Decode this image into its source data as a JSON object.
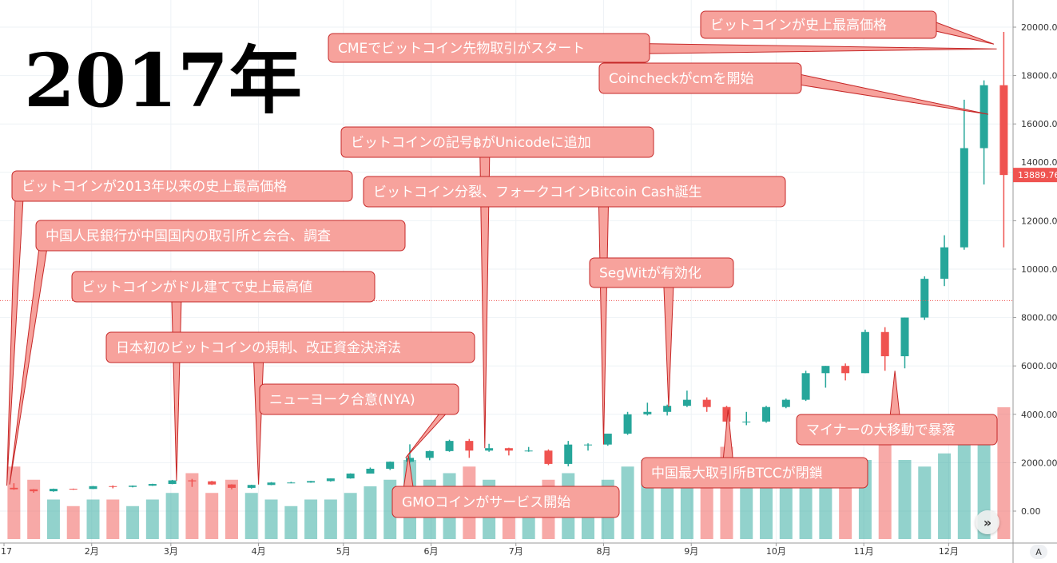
{
  "title": "2017年",
  "colors": {
    "up": "#26a69a",
    "down": "#ef5350",
    "annotation_fill": "#f7a29c",
    "annotation_border": "#c62828",
    "price_label": "#ef5350"
  },
  "controls": {
    "scroll_label": "»",
    "auto_label": "A"
  },
  "chart_data": {
    "type": "candlestick",
    "title": "",
    "x_tick_labels": [
      "17",
      "2月",
      "3月",
      "4月",
      "5月",
      "6月",
      "7月",
      "8月",
      "9月",
      "10月",
      "11月",
      "12月"
    ],
    "y_tick_labels": [
      "0.00",
      "2000.00",
      "4000.00",
      "6000.00",
      "8000.00",
      "10000.00",
      "12000.00",
      "14000.00",
      "16000.00",
      "18000.00",
      "20000.00"
    ],
    "ylim": [
      -1000,
      21000
    ],
    "grid": true,
    "last_price": 13889.76,
    "last_price_label": "13889.76",
    "dotted_level": 8700,
    "period": "weekly",
    "start_date": "2017-01-01",
    "ohlc": [
      [
        963,
        1150,
        880,
        900
      ],
      [
        900,
        910,
        760,
        820
      ],
      [
        820,
        930,
        800,
        920
      ],
      [
        920,
        930,
        880,
        915
      ],
      [
        915,
        1040,
        910,
        1030
      ],
      [
        1030,
        1060,
        940,
        1000
      ],
      [
        1000,
        1060,
        980,
        1050
      ],
      [
        1050,
        1130,
        1040,
        1120
      ],
      [
        1120,
        1290,
        1110,
        1270
      ],
      [
        1270,
        1330,
        1000,
        1230
      ],
      [
        1230,
        1250,
        1080,
        1100
      ],
      [
        1100,
        1110,
        900,
        960
      ],
      [
        960,
        1090,
        930,
        1080
      ],
      [
        1080,
        1200,
        1070,
        1180
      ],
      [
        1180,
        1210,
        1150,
        1180
      ],
      [
        1180,
        1250,
        1170,
        1240
      ],
      [
        1240,
        1350,
        1220,
        1350
      ],
      [
        1350,
        1560,
        1340,
        1550
      ],
      [
        1550,
        1800,
        1550,
        1750
      ],
      [
        1750,
        2050,
        1700,
        2040
      ],
      [
        2040,
        2760,
        2000,
        2200
      ],
      [
        2200,
        2500,
        2100,
        2480
      ],
      [
        2480,
        2950,
        2450,
        2900
      ],
      [
        2900,
        2980,
        2200,
        2500
      ],
      [
        2500,
        2780,
        2450,
        2600
      ],
      [
        2600,
        2620,
        2300,
        2500
      ],
      [
        2500,
        2650,
        2450,
        2500
      ],
      [
        2500,
        2550,
        1900,
        1950
      ],
      [
        1950,
        2900,
        1850,
        2750
      ],
      [
        2750,
        2800,
        2500,
        2750
      ],
      [
        2750,
        3200,
        2700,
        3200
      ],
      [
        3200,
        4100,
        3150,
        4000
      ],
      [
        4000,
        4480,
        3950,
        4100
      ],
      [
        4100,
        4400,
        3950,
        4350
      ],
      [
        4350,
        4980,
        4300,
        4600
      ],
      [
        4600,
        4700,
        4100,
        4300
      ],
      [
        4300,
        4350,
        3000,
        3700
      ],
      [
        3700,
        4100,
        3550,
        3700
      ],
      [
        3700,
        4350,
        3650,
        4300
      ],
      [
        4300,
        4650,
        4250,
        4600
      ],
      [
        4600,
        5800,
        4550,
        5700
      ],
      [
        5700,
        6000,
        5100,
        6000
      ],
      [
        6000,
        6100,
        5400,
        5700
      ],
      [
        5700,
        7500,
        5700,
        7400
      ],
      [
        7400,
        7600,
        5800,
        6400
      ],
      [
        6400,
        8000,
        5900,
        8000
      ],
      [
        8000,
        9700,
        7900,
        9600
      ],
      [
        9600,
        11400,
        9300,
        10900
      ],
      [
        10900,
        17000,
        10800,
        15000
      ],
      [
        15000,
        17800,
        13500,
        17600
      ],
      [
        17600,
        19800,
        10900,
        13889.76
      ]
    ],
    "volume_relative": [
      0.55,
      0.45,
      0.3,
      0.25,
      0.3,
      0.3,
      0.25,
      0.3,
      0.35,
      0.5,
      0.35,
      0.45,
      0.35,
      0.3,
      0.25,
      0.3,
      0.3,
      0.35,
      0.4,
      0.45,
      0.6,
      0.45,
      0.5,
      0.55,
      0.45,
      0.4,
      0.35,
      0.45,
      0.5,
      0.4,
      0.45,
      0.55,
      0.6,
      0.5,
      0.5,
      0.55,
      0.7,
      0.55,
      0.5,
      0.45,
      0.55,
      0.6,
      0.55,
      0.6,
      0.75,
      0.6,
      0.55,
      0.65,
      0.8,
      0.75,
      1.0
    ]
  },
  "annotations": [
    {
      "text": "ビットコインが史上最高価格",
      "date": "2017-12-17",
      "price": 19300
    },
    {
      "text": "CMEでビットコイン先物取引がスタート",
      "date": "2017-12-18",
      "price": 19100
    },
    {
      "text": "Coincheckがcmを開始",
      "date": "2017-12-15",
      "price": 16400
    },
    {
      "text": "ビットコインの記号฿がUnicodeに追加",
      "date": "2017-06-20",
      "price": 2600
    },
    {
      "text": "ビットコインが2013年以来の史上最高価格",
      "date": "2017-01-02",
      "price": 1050
    },
    {
      "text": "ビットコイン分裂、フォークコインBitcoin Cash誕生",
      "date": "2017-08-01",
      "price": 2750
    },
    {
      "text": "中国人民銀行が中国国内の取引所と会合、調査",
      "date": "2017-01-03",
      "price": 1100
    },
    {
      "text": "SegWitが有効化",
      "date": "2017-08-24",
      "price": 4300
    },
    {
      "text": "ビットコインがドル建てで史上最高値",
      "date": "2017-03-03",
      "price": 1250
    },
    {
      "text": "日本初のビットコインの規制、改正資金決済法",
      "date": "2017-04-01",
      "price": 1100
    },
    {
      "text": "ニューヨーク合意(NYA)",
      "date": "2017-05-23",
      "price": 2200
    },
    {
      "text": "マイナーの大移動で暴落",
      "date": "2017-11-12",
      "price": 5800
    },
    {
      "text": "中国最大取引所BTCCが閉鎖",
      "date": "2017-09-14",
      "price": 4200
    },
    {
      "text": "GMOコインがサービス開始",
      "date": "2017-05-24",
      "price": 2300
    }
  ]
}
